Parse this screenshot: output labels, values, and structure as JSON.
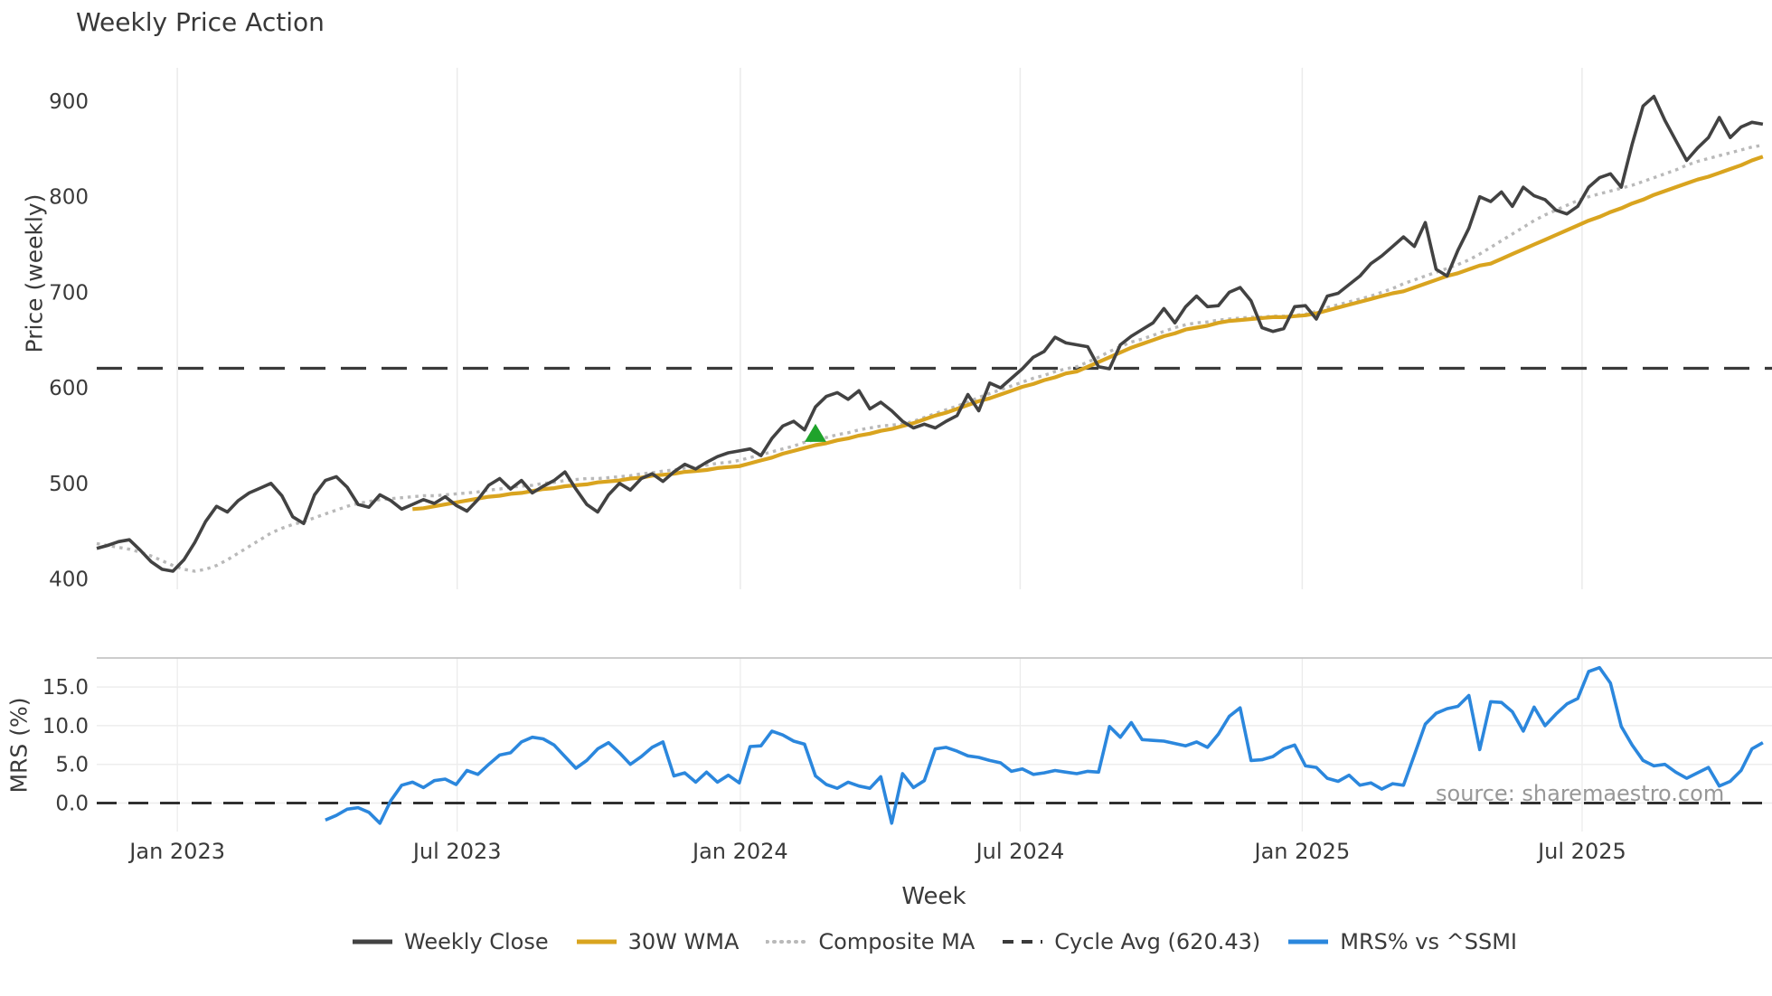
{
  "title": "Weekly Price Action",
  "xlabel": "Week",
  "source_note": "source: sharemaestro.com",
  "colors": {
    "weekly_close": "#424242",
    "wma_30w": "#d9a41f",
    "composite_ma": "#b9b9b9",
    "cycle_avg": "#3a3a3a",
    "mrs_line": "#2b87dd",
    "signal_marker": "#1fa32b",
    "gridline": "#ebebeb",
    "text": "#3a3a3a"
  },
  "legend": [
    {
      "label": "Weekly Close",
      "style": "solid",
      "color": "#424242"
    },
    {
      "label": "30W WMA",
      "style": "solid",
      "color": "#d9a41f"
    },
    {
      "label": "Composite MA",
      "style": "dotted",
      "color": "#b9b9b9"
    },
    {
      "label": "Cycle Avg (620.43)",
      "style": "dashed",
      "color": "#3a3a3a"
    },
    {
      "label": "MRS% vs ^SSMI",
      "style": "solid",
      "color": "#2b87dd"
    }
  ],
  "chart_data": {
    "type": "line",
    "title": "Weekly Price Action",
    "xlabel": "Week",
    "x_unit": "weekly index starting early Nov 2022",
    "weeks_total": 154,
    "x_ticks": [
      {
        "week": 7.4,
        "label": "Jan 2023"
      },
      {
        "week": 33.1,
        "label": "Jul 2023"
      },
      {
        "week": 59.1,
        "label": "Jan 2024"
      },
      {
        "week": 84.8,
        "label": "Jul 2024"
      },
      {
        "week": 110.7,
        "label": "Jan 2025"
      },
      {
        "week": 136.4,
        "label": "Jul 2025"
      }
    ],
    "panels": [
      {
        "id": "price",
        "ylabel": "Price (weekly)",
        "ylim": [
          385,
          930
        ],
        "yticks": [
          {
            "value": 400,
            "label": "400"
          },
          {
            "value": 500,
            "label": "500"
          },
          {
            "value": 600,
            "label": "600"
          },
          {
            "value": 700,
            "label": "700"
          },
          {
            "value": 800,
            "label": "800"
          },
          {
            "value": 900,
            "label": "900"
          }
        ],
        "grid": "vertical",
        "reference_line": {
          "label": "Cycle Avg (620.43)",
          "value": 620.43,
          "color": "#3a3a3a",
          "style": "dashed"
        },
        "signal_marker": {
          "symbol": "triangle-up",
          "color": "#1fa32b",
          "week": 66,
          "value": 552
        },
        "series": [
          {
            "name": "Weekly Close",
            "color": "#424242",
            "style": "solid",
            "width": 3.6,
            "start_week": 0,
            "values": [
              432,
              435,
              439,
              441,
              430,
              418,
              410,
              408,
              420,
              438,
              460,
              476,
              470,
              482,
              490,
              495,
              500,
              487,
              465,
              458,
              488,
              503,
              507,
              496,
              478,
              475,
              488,
              482,
              473,
              478,
              483,
              479,
              486,
              477,
              471,
              483,
              498,
              505,
              494,
              503,
              490,
              497,
              503,
              512,
              494,
              478,
              470,
              488,
              500,
              493,
              505,
              510,
              502,
              512,
              520,
              515,
              522,
              528,
              532,
              534,
              536,
              529,
              547,
              560,
              565,
              556,
              580,
              591,
              595,
              588,
              597,
              578,
              585,
              576,
              565,
              558,
              562,
              558,
              565,
              571,
              593,
              576,
              605,
              600,
              610,
              620,
              632,
              638,
              653,
              647,
              645,
              643,
              622,
              620,
              645,
              654,
              661,
              668,
              683,
              668,
              685,
              696,
              685,
              686,
              700,
              705,
              691,
              663,
              659,
              662,
              685,
              686,
              672,
              696,
              699,
              708,
              717,
              730,
              738,
              748,
              758,
              748,
              773,
              724,
              717,
              744,
              767,
              800,
              795,
              805,
              790,
              810,
              801,
              797,
              786,
              782,
              790,
              810,
              820,
              824,
              810,
              855,
              895,
              905,
              880,
              859,
              838,
              851,
              862,
              883,
              862,
              873,
              878,
              876
            ]
          },
          {
            "name": "30W WMA",
            "color": "#d9a41f",
            "style": "solid",
            "width": 4.2,
            "start_week": 29,
            "values": [
              473,
              474,
              476,
              478,
              480,
              482,
              484,
              486,
              487,
              489,
              490,
              492,
              494,
              495,
              497,
              498,
              499,
              501,
              502,
              503,
              505,
              506,
              508,
              509,
              510,
              512,
              513,
              514,
              516,
              517,
              518,
              521,
              524,
              527,
              531,
              534,
              537,
              540,
              542,
              545,
              547,
              550,
              552,
              555,
              557,
              560,
              563,
              567,
              571,
              574,
              578,
              582,
              586,
              589,
              593,
              597,
              601,
              604,
              608,
              611,
              615,
              617,
              622,
              627,
              632,
              637,
              642,
              646,
              650,
              654,
              657,
              661,
              663,
              665,
              668,
              670,
              671,
              672,
              673,
              674,
              674,
              675,
              676,
              678,
              681,
              684,
              687,
              690,
              693,
              696,
              699,
              701,
              705,
              709,
              713,
              717,
              720,
              724,
              728,
              730,
              735,
              740,
              745,
              750,
              755,
              760,
              765,
              770,
              775,
              779,
              784,
              788,
              793,
              797,
              802,
              806,
              810,
              814,
              818,
              821,
              825,
              829,
              833,
              838,
              842
            ]
          },
          {
            "name": "Composite MA",
            "color": "#b9b9b9",
            "style": "dotted",
            "width": 3.4,
            "start_week": 0,
            "values": [
              437,
              435,
              433,
              431,
              428,
              424,
              419,
              414,
              410,
              408,
              410,
              414,
              420,
              427,
              434,
              441,
              448,
              453,
              457,
              460,
              464,
              468,
              472,
              476,
              479,
              481,
              483,
              484,
              485,
              486,
              487,
              487,
              488,
              489,
              490,
              491,
              493,
              494,
              496,
              497,
              498,
              500,
              501,
              503,
              504,
              505,
              505,
              506,
              507,
              508,
              510,
              511,
              513,
              514,
              516,
              517,
              519,
              521,
              522,
              524,
              527,
              530,
              533,
              536,
              539,
              543,
              546,
              548,
              551,
              553,
              556,
              558,
              560,
              561,
              562,
              565,
              569,
              573,
              577,
              581,
              585,
              590,
              594,
              598,
              602,
              606,
              610,
              613,
              617,
              620,
              622,
              627,
              632,
              638,
              643,
              648,
              651,
              655,
              659,
              663,
              666,
              668,
              669,
              671,
              672,
              673,
              674,
              674,
              675,
              675,
              676,
              677,
              680,
              684,
              687,
              690,
              693,
              696,
              700,
              704,
              709,
              713,
              717,
              721,
              725,
              729,
              734,
              740,
              747,
              754,
              761,
              768,
              775,
              781,
              786,
              791,
              796,
              800,
              803,
              806,
              809,
              812,
              816,
              820,
              824,
              828,
              833,
              837,
              840,
              843,
              846,
              849,
              852,
              854
            ]
          }
        ]
      },
      {
        "id": "mrs",
        "ylabel": "MRS (%)",
        "ylim": [
          -3.5,
          18.7
        ],
        "yticks": [
          {
            "value": 0,
            "label": "0.0"
          },
          {
            "value": 5,
            "label": "5.0"
          },
          {
            "value": 10,
            "label": "10.0"
          },
          {
            "value": 15,
            "label": "15.0"
          }
        ],
        "zero_line": {
          "value": 0,
          "color": "#222222",
          "style": "dashed"
        },
        "series": [
          {
            "name": "MRS% vs ^SSMI",
            "color": "#2b87dd",
            "style": "solid",
            "width": 3.6,
            "start_week": 21,
            "values": [
              -2.2,
              -1.6,
              -0.8,
              -0.6,
              -1.2,
              -2.6,
              0.3,
              2.3,
              2.7,
              2.0,
              2.9,
              3.1,
              2.4,
              4.2,
              3.7,
              5.0,
              6.2,
              6.5,
              7.9,
              8.5,
              8.3,
              7.5,
              6.0,
              4.5,
              5.5,
              7.0,
              7.8,
              6.5,
              5.0,
              6.0,
              7.2,
              7.9,
              3.5,
              3.9,
              2.7,
              4.0,
              2.7,
              3.6,
              2.6,
              7.3,
              7.4,
              9.3,
              8.8,
              8.0,
              7.6,
              3.5,
              2.4,
              1.9,
              2.7,
              2.2,
              1.9,
              3.4,
              -2.6,
              3.8,
              2.0,
              2.9,
              7.0,
              7.2,
              6.7,
              6.1,
              5.9,
              5.5,
              5.2,
              4.1,
              4.4,
              3.7,
              3.9,
              4.2,
              4.0,
              3.8,
              4.1,
              4.0,
              9.9,
              8.5,
              10.4,
              8.2,
              8.1,
              8.0,
              7.7,
              7.4,
              7.9,
              7.2,
              8.9,
              11.2,
              12.3,
              5.5,
              5.6,
              6.0,
              7.0,
              7.5,
              4.8,
              4.6,
              3.2,
              2.8,
              3.6,
              2.3,
              2.6,
              1.8,
              2.5,
              2.3,
              6.2,
              10.2,
              11.6,
              12.2,
              12.5,
              13.9,
              6.9,
              13.1,
              13.0,
              11.8,
              9.3,
              12.4,
              10.0,
              11.5,
              12.8,
              13.5,
              17.0,
              17.5,
              15.5,
              9.9,
              7.5,
              5.5,
              4.8,
              5.0,
              4.0,
              3.2,
              3.9,
              4.6,
              2.2,
              2.8,
              4.2,
              7.0,
              7.8
            ]
          }
        ]
      }
    ]
  }
}
